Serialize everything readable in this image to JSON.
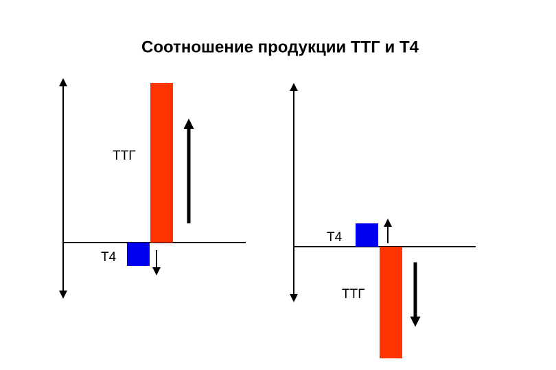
{
  "title": "Соотношение продукции ТТГ и Т4",
  "panels": [
    {
      "label_ttg": "ТТГ",
      "label_t4": "Т4"
    },
    {
      "label_ttg": "ТТГ",
      "label_t4": "Т4"
    }
  ]
}
